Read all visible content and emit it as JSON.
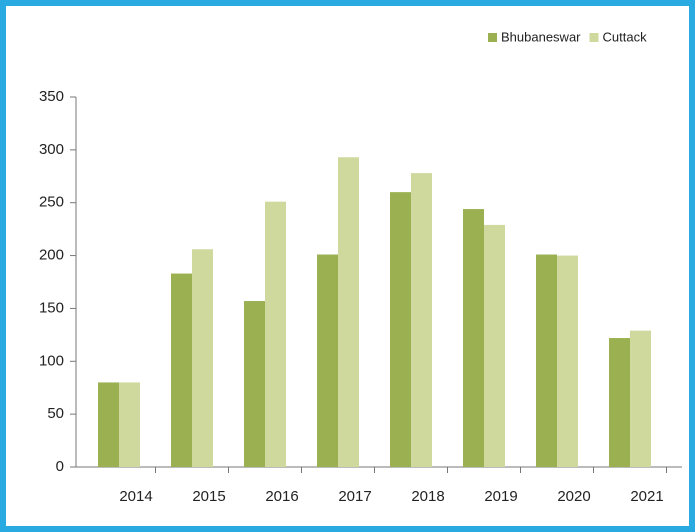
{
  "chart_data": {
    "type": "bar",
    "categories": [
      "2014",
      "2015",
      "2016",
      "2017",
      "2018",
      "2019",
      "2020",
      "2021"
    ],
    "series": [
      {
        "name": "Bhubaneswar",
        "color": "#9bb151",
        "values": [
          80,
          183,
          157,
          201,
          260,
          244,
          201,
          122
        ]
      },
      {
        "name": "Cuttack",
        "color": "#cfd99d",
        "values": [
          80,
          206,
          251,
          293,
          278,
          229,
          200,
          129
        ]
      }
    ],
    "ylim": [
      0,
      350
    ],
    "yticks": [
      0,
      50,
      100,
      150,
      200,
      250,
      300,
      350
    ],
    "grid": false,
    "legend": "top-right"
  }
}
